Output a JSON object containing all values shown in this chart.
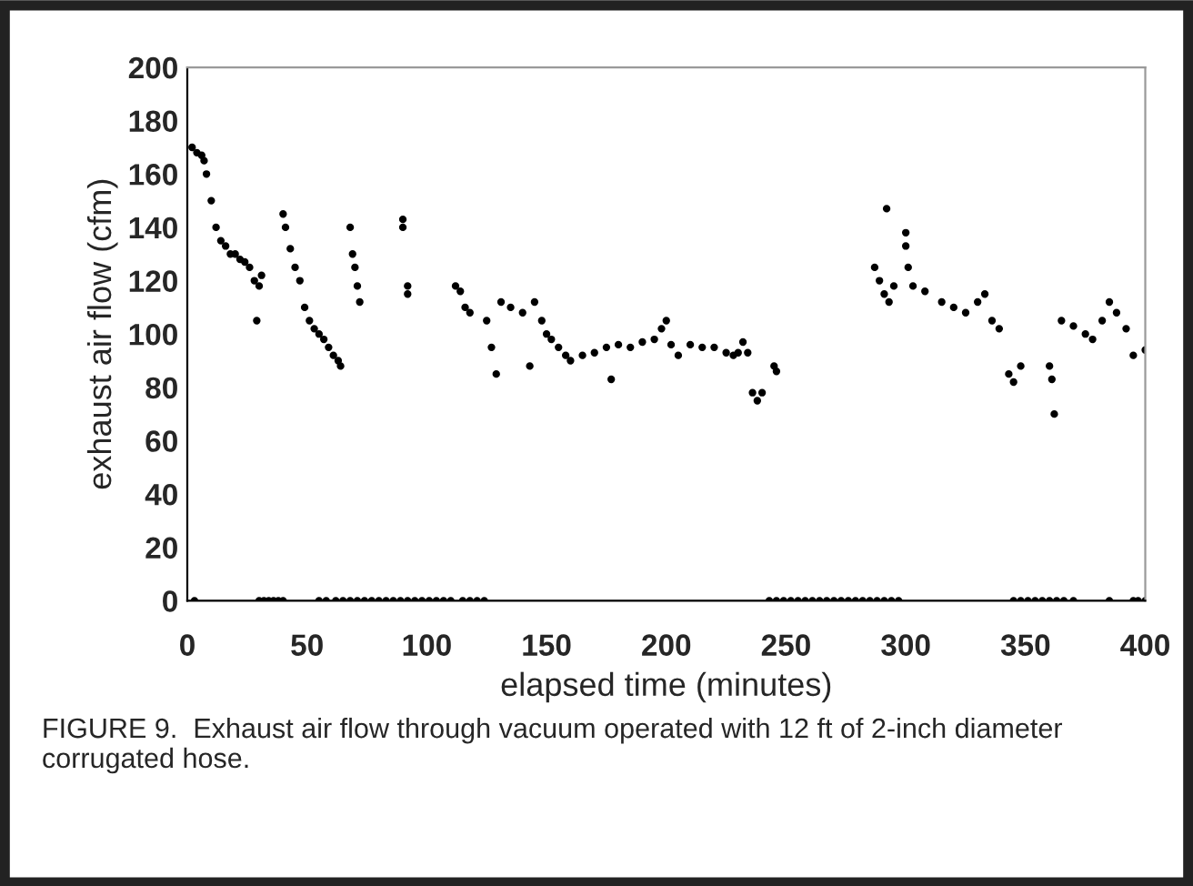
{
  "chart_data": {
    "type": "scatter",
    "xlabel": "elapsed time (minutes)",
    "ylabel": "exhaust air flow (cfm)",
    "annotations": [
      "FIGURE 9.  Exhaust air flow through vacuum operated with 12 ft of 2-inch diameter corrugated hose."
    ],
    "xlim": [
      0,
      400
    ],
    "ylim": [
      0,
      200
    ],
    "xticks": [
      0,
      50,
      100,
      150,
      200,
      250,
      300,
      350,
      400
    ],
    "yticks": [
      0,
      20,
      40,
      60,
      80,
      100,
      120,
      140,
      160,
      180,
      200
    ],
    "grid": false,
    "marker": "circle",
    "series": [
      {
        "color": "#000000",
        "x": [
          2,
          4,
          6,
          7,
          8,
          10,
          12,
          14,
          16,
          18,
          20,
          22,
          24,
          26,
          28,
          29,
          30,
          31,
          40,
          41,
          43,
          45,
          47,
          49,
          51,
          53,
          55,
          57,
          59,
          61,
          63,
          64,
          68,
          69,
          70,
          71,
          72,
          90,
          90,
          92,
          92,
          112,
          114,
          116,
          118,
          125,
          127,
          129,
          131,
          135,
          140,
          143,
          145,
          148,
          150,
          152,
          155,
          158,
          160,
          165,
          170,
          177,
          175,
          180,
          185,
          190,
          195,
          198,
          200,
          202,
          205,
          210,
          215,
          220,
          225,
          228,
          230,
          232,
          234,
          236,
          238,
          240,
          245,
          246,
          287,
          289,
          291,
          292,
          293,
          295,
          300,
          300,
          301,
          303,
          308,
          315,
          320,
          325,
          330,
          333,
          336,
          339,
          343,
          345,
          348,
          360,
          361,
          362,
          365,
          370,
          375,
          378,
          382,
          385,
          388,
          392,
          395,
          400,
          3,
          30,
          32,
          34,
          36,
          38,
          40,
          55,
          58,
          62,
          65,
          68,
          71,
          74,
          77,
          80,
          83,
          86,
          89,
          92,
          95,
          98,
          101,
          104,
          107,
          110,
          115,
          118,
          121,
          124,
          243,
          246,
          249,
          252,
          255,
          258,
          261,
          264,
          267,
          270,
          273,
          276,
          279,
          282,
          285,
          288,
          291,
          294,
          297,
          345,
          348,
          351,
          354,
          357,
          360,
          363,
          366,
          370,
          385,
          395,
          397,
          400
        ],
        "values": [
          170,
          168,
          167,
          165,
          160,
          150,
          140,
          135,
          133,
          130,
          130,
          128,
          127,
          125,
          120,
          105,
          118,
          122,
          145,
          140,
          132,
          125,
          120,
          110,
          105,
          102,
          100,
          98,
          95,
          92,
          90,
          88,
          140,
          130,
          125,
          118,
          112,
          143,
          140,
          118,
          115,
          118,
          116,
          110,
          108,
          105,
          95,
          85,
          112,
          110,
          108,
          88,
          112,
          105,
          100,
          98,
          95,
          92,
          90,
          92,
          93,
          83,
          95,
          96,
          95,
          97,
          98,
          102,
          105,
          96,
          92,
          96,
          95,
          95,
          93,
          92,
          93,
          97,
          93,
          78,
          75,
          78,
          88,
          86,
          125,
          120,
          115,
          147,
          112,
          118,
          138,
          133,
          125,
          118,
          116,
          112,
          110,
          108,
          112,
          115,
          105,
          102,
          85,
          82,
          88,
          88,
          83,
          70,
          105,
          103,
          100,
          98,
          105,
          112,
          108,
          102,
          92,
          94,
          0,
          0,
          0,
          0,
          0,
          0,
          0,
          0,
          0,
          0,
          0,
          0,
          0,
          0,
          0,
          0,
          0,
          0,
          0,
          0,
          0,
          0,
          0,
          0,
          0,
          0,
          0,
          0,
          0,
          0,
          0,
          0,
          0,
          0,
          0,
          0,
          0,
          0,
          0,
          0,
          0,
          0,
          0,
          0,
          0,
          0,
          0,
          0,
          0,
          0,
          0,
          0,
          0,
          0,
          0,
          0,
          0,
          0,
          0,
          0,
          0,
          0
        ]
      }
    ]
  }
}
